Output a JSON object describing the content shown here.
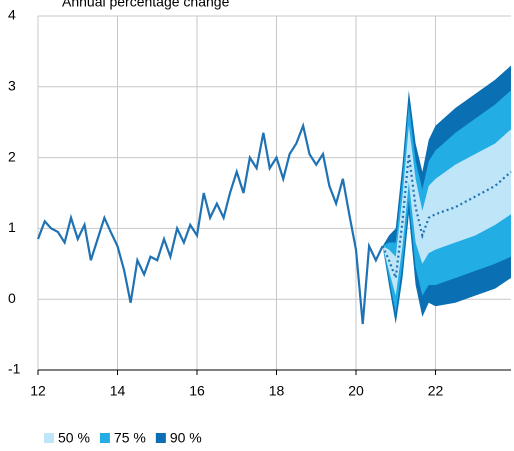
{
  "chart_data": {
    "type": "fan",
    "title": "Annual percentage change",
    "xlim": [
      12,
      23.9
    ],
    "xticks": [
      12,
      14,
      16,
      18,
      20,
      22
    ],
    "ylim": [
      -1,
      4
    ],
    "yticks": [
      -1,
      0,
      1,
      2,
      3,
      4
    ],
    "grid": true,
    "history": {
      "color": "#1f72b3",
      "x": [
        12,
        12.17,
        12.33,
        12.5,
        12.67,
        12.83,
        13,
        13.17,
        13.33,
        13.5,
        13.67,
        13.83,
        14,
        14.17,
        14.33,
        14.5,
        14.67,
        14.83,
        15,
        15.17,
        15.33,
        15.5,
        15.67,
        15.83,
        16,
        16.17,
        16.33,
        16.5,
        16.67,
        16.83,
        17,
        17.17,
        17.33,
        17.5,
        17.67,
        17.83,
        18,
        18.17,
        18.33,
        18.5,
        18.67,
        18.83,
        19,
        19.17,
        19.33,
        19.5,
        19.67,
        19.83,
        20,
        20.17,
        20.33,
        20.5,
        20.67
      ],
      "values": [
        0.85,
        1.1,
        1.0,
        0.95,
        0.8,
        1.15,
        0.85,
        1.05,
        0.55,
        0.85,
        1.15,
        0.95,
        0.75,
        0.4,
        -0.05,
        0.55,
        0.35,
        0.6,
        0.55,
        0.85,
        0.6,
        1.0,
        0.8,
        1.05,
        0.9,
        1.5,
        1.15,
        1.35,
        1.15,
        1.5,
        1.8,
        1.5,
        2.0,
        1.85,
        2.35,
        1.85,
        2.0,
        1.7,
        2.05,
        2.2,
        2.45,
        2.05,
        1.9,
        2.05,
        1.6,
        1.35,
        1.7,
        1.2,
        0.7,
        -0.35,
        0.75,
        0.55,
        0.75
      ]
    },
    "fan": {
      "median_color": "#1f72b3",
      "x": [
        20.67,
        20.83,
        21.0,
        21.17,
        21.33,
        21.5,
        21.67,
        21.83,
        22.0,
        22.5,
        23.0,
        23.5,
        23.9
      ],
      "median": [
        0.75,
        0.55,
        0.3,
        1.1,
        2.05,
        1.3,
        0.9,
        1.15,
        1.2,
        1.3,
        1.45,
        1.6,
        1.8
      ],
      "bands": [
        {
          "name": "90 %",
          "color": "#0b6fb3",
          "upper": [
            0.75,
            0.9,
            1.0,
            1.9,
            2.95,
            2.2,
            1.8,
            2.25,
            2.45,
            2.7,
            2.9,
            3.1,
            3.3
          ],
          "lower": [
            0.75,
            0.2,
            -0.35,
            0.3,
            1.2,
            0.2,
            -0.25,
            -0.05,
            -0.1,
            -0.05,
            0.05,
            0.15,
            0.3
          ]
        },
        {
          "name": "75 %",
          "color": "#22aee5",
          "upper": [
            0.75,
            0.8,
            0.8,
            1.7,
            2.75,
            1.95,
            1.55,
            1.95,
            2.1,
            2.35,
            2.55,
            2.75,
            2.95
          ],
          "lower": [
            0.75,
            0.3,
            -0.2,
            0.5,
            1.4,
            0.45,
            0.05,
            0.2,
            0.2,
            0.3,
            0.4,
            0.5,
            0.6
          ]
        },
        {
          "name": "50 %",
          "color": "#bfe5f8",
          "upper": [
            0.75,
            0.7,
            0.6,
            1.45,
            2.45,
            1.7,
            1.25,
            1.6,
            1.7,
            1.9,
            2.05,
            2.2,
            2.4
          ],
          "lower": [
            0.75,
            0.4,
            0.05,
            0.75,
            1.65,
            0.8,
            0.5,
            0.65,
            0.7,
            0.8,
            0.9,
            1.05,
            1.2
          ]
        }
      ]
    }
  }
}
